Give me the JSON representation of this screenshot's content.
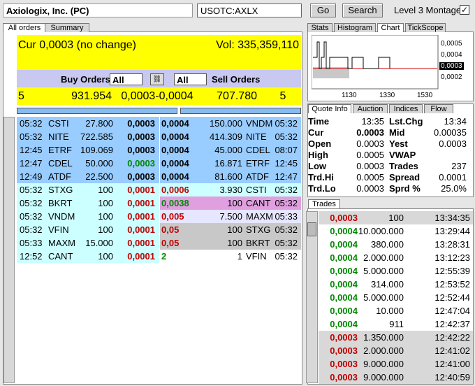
{
  "header": {
    "company": "Axiologix, Inc. (PC)",
    "symbol": "USOTC:AXLX",
    "go": "Go",
    "search": "Search",
    "level3": "Level 3 Montage"
  },
  "left_tabs": [
    "All orders",
    "Summary"
  ],
  "right_tabs": [
    "Stats",
    "Histogram",
    "Chart",
    "TickScope"
  ],
  "montage": {
    "cur": "Cur 0,0003 (no change)",
    "vol": "Vol: 335,359,110",
    "buy_label": "Buy Orders",
    "sell_label": "Sell Orders",
    "buy_filter": "All",
    "sell_filter": "All",
    "summary": [
      "5",
      "931.954",
      "0,0003-0,0004",
      "707.780",
      "5"
    ],
    "buy": [
      [
        "05:32",
        "CSTI",
        "27.800",
        "0,0003"
      ],
      [
        "05:32",
        "NITE",
        "722.585",
        "0,0003"
      ],
      [
        "12:45",
        "ETRF",
        "109.069",
        "0,0003"
      ],
      [
        "12:47",
        "CDEL",
        "50.000",
        "0,0003"
      ],
      [
        "12:49",
        "ATDF",
        "22.500",
        "0,0003"
      ],
      [
        "05:32",
        "STXG",
        "100",
        "0,0001"
      ],
      [
        "05:32",
        "BKRT",
        "100",
        "0,0001"
      ],
      [
        "05:32",
        "VNDM",
        "100",
        "0,0001"
      ],
      [
        "05:32",
        "VFIN",
        "100",
        "0,0001"
      ],
      [
        "05:33",
        "MAXM",
        "15.000",
        "0,0001"
      ],
      [
        "12:52",
        "CANT",
        "100",
        "0,0001"
      ]
    ],
    "sell": [
      [
        "0,0004",
        "150.000",
        "VNDM",
        "05:32"
      ],
      [
        "0,0004",
        "414.309",
        "NITE",
        "05:32"
      ],
      [
        "0,0004",
        "45.000",
        "CDEL",
        "08:07"
      ],
      [
        "0,0004",
        "16.871",
        "ETRF",
        "12:45"
      ],
      [
        "0,0004",
        "81.600",
        "ATDF",
        "12:47"
      ],
      [
        "0,0006",
        "3.930",
        "CSTI",
        "05:32"
      ],
      [
        "0,0038",
        "100",
        "CANT",
        "05:32"
      ],
      [
        "0,005",
        "7.500",
        "MAXM",
        "05:33"
      ],
      [
        "0,05",
        "100",
        "STXG",
        "05:32"
      ],
      [
        "0,05",
        "100",
        "BKRT",
        "05:32"
      ],
      [
        "2",
        "1",
        "VFIN",
        "05:32"
      ]
    ]
  },
  "chart": {
    "yticks": [
      "0,0005",
      "0,0004",
      "0,0003",
      "0,0002"
    ],
    "xticks": [
      "1130",
      "1330",
      "1530"
    ]
  },
  "quote_tabs": [
    "Quote Info",
    "Auction",
    "Indices",
    "Flow"
  ],
  "quote": [
    [
      "Time",
      "13:35",
      "Lst.Chg",
      "13:34"
    ],
    [
      "Cur",
      "0.0003",
      "Mid",
      "0.00035"
    ],
    [
      "Open",
      "0.0003",
      "Yest",
      "0.0003"
    ],
    [
      "High",
      "0.0005",
      "VWAP"
    ],
    [
      "Low",
      "0.0003",
      "Trades",
      "237"
    ],
    [
      "Trd.Hi",
      "0.0005",
      "Spread",
      "0.0001"
    ],
    [
      "Trd.Lo",
      "0.0003",
      "Sprd %",
      "25.0%"
    ]
  ],
  "trades_tab": "Trades",
  "trades": [
    [
      "0,0003",
      "100",
      "13:34:35"
    ],
    [
      "0,0004",
      "10.000.000",
      "13:29:44"
    ],
    [
      "0,0004",
      "380.000",
      "13:28:31"
    ],
    [
      "0,0004",
      "2.000.000",
      "13:12:23"
    ],
    [
      "0,0004",
      "5.000.000",
      "12:55:39"
    ],
    [
      "0,0004",
      "314.000",
      "12:53:52"
    ],
    [
      "0,0004",
      "5.000.000",
      "12:52:44"
    ],
    [
      "0,0004",
      "10.000",
      "12:47:04"
    ],
    [
      "0,0004",
      "911",
      "12:42:37"
    ],
    [
      "0,0003",
      "1.350.000",
      "12:42:22"
    ],
    [
      "0,0003",
      "2.000.000",
      "12:41:02"
    ],
    [
      "0,0003",
      "9.000.000",
      "12:41:00"
    ],
    [
      "0,0003",
      "9.000.000",
      "12:40:59"
    ]
  ]
}
